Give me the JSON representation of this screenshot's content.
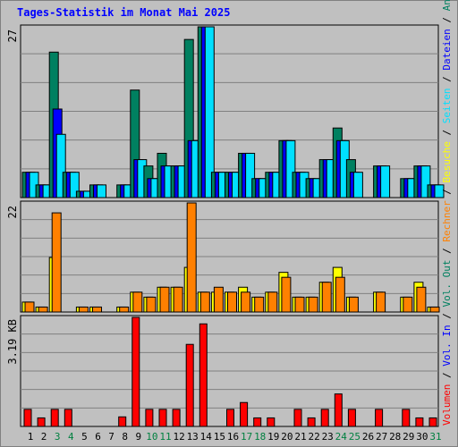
{
  "title": "Tages-Statistik im Monat Mai 2025",
  "chart_data": {
    "type": "bar",
    "categories": [
      "1",
      "2",
      "3",
      "4",
      "5",
      "6",
      "7",
      "8",
      "9",
      "10",
      "11",
      "12",
      "13",
      "14",
      "15",
      "16",
      "17",
      "18",
      "19",
      "20",
      "21",
      "22",
      "23",
      "24",
      "25",
      "26",
      "27",
      "28",
      "29",
      "30",
      "31"
    ],
    "weekend_days": [
      "3",
      "4",
      "10",
      "11",
      "17",
      "18",
      "24",
      "25",
      "31"
    ],
    "panels": [
      {
        "name": "hits-files-pages",
        "max_label": "27",
        "ymax": 27,
        "series": [
          {
            "name": "Anfragen",
            "color": "#008060",
            "values": [
              4,
              2,
              23,
              4,
              1,
              2,
              0,
              2,
              17,
              5,
              7,
              5,
              25,
              27,
              4,
              4,
              7,
              3,
              4,
              9,
              4,
              3,
              6,
              11,
              6,
              0,
              5,
              0,
              3,
              5,
              2
            ]
          },
          {
            "name": "Dateien",
            "color": "#0000ff",
            "values": [
              4,
              2,
              14,
              4,
              1,
              2,
              0,
              2,
              6,
              3,
              5,
              5,
              9,
              27,
              4,
              4,
              7,
              3,
              4,
              9,
              4,
              3,
              6,
              9,
              4,
              0,
              5,
              0,
              3,
              5,
              2
            ]
          },
          {
            "name": "Seiten",
            "color": "#00e0ff",
            "values": [
              4,
              2,
              10,
              4,
              1,
              2,
              0,
              2,
              6,
              3,
              5,
              5,
              9,
              27,
              4,
              4,
              7,
              3,
              4,
              9,
              4,
              3,
              6,
              9,
              4,
              0,
              5,
              0,
              3,
              5,
              2
            ]
          }
        ]
      },
      {
        "name": "visits-sites",
        "max_label": "22",
        "ymax": 22,
        "series": [
          {
            "name": "Besuche",
            "color": "#ffff00",
            "values": [
              2,
              1,
              11,
              0,
              1,
              1,
              0,
              1,
              4,
              3,
              5,
              5,
              9,
              4,
              4,
              4,
              5,
              3,
              4,
              8,
              3,
              3,
              6,
              9,
              3,
              0,
              4,
              0,
              3,
              6,
              1
            ]
          },
          {
            "name": "Rechner",
            "color": "#ff8000",
            "values": [
              2,
              1,
              20,
              0,
              1,
              1,
              0,
              1,
              4,
              3,
              5,
              5,
              22,
              4,
              5,
              4,
              4,
              3,
              4,
              7,
              3,
              3,
              6,
              7,
              3,
              0,
              4,
              0,
              3,
              5,
              1
            ]
          }
        ]
      },
      {
        "name": "volume",
        "max_label": "3.19 KB",
        "ymax": 3.19,
        "series": [
          {
            "name": "Volumen",
            "color": "#ff0000",
            "values": [
              0.5,
              0.25,
              0.5,
              0.5,
              0,
              0,
              0,
              0.28,
              3.19,
              0.5,
              0.5,
              0.5,
              2.4,
              3.0,
              0,
              0.5,
              0.7,
              0.25,
              0.25,
              0,
              0.5,
              0.25,
              0.5,
              0.95,
              0.5,
              0,
              0.5,
              0,
              0.5,
              0.25,
              0.25
            ]
          }
        ]
      }
    ],
    "legend": {
      "placement": "right-vertical",
      "separator": "/",
      "items": [
        {
          "label": "Volumen",
          "color": "#ff0000"
        },
        {
          "label": "Vol. In",
          "color": "#0000ff"
        },
        {
          "label": "Vol. Out",
          "color": "#008060"
        },
        {
          "label": "Rechner",
          "color": "#ff8000"
        },
        {
          "label": "Besuche",
          "color": "#ffff00"
        },
        {
          "label": "Seiten",
          "color": "#00e0ff"
        },
        {
          "label": "Dateien",
          "color": "#0000ff"
        },
        {
          "label": "Anfragen",
          "color": "#008060"
        }
      ]
    },
    "grid": true,
    "colors": {
      "background": "#c0c0c0",
      "grid": "#808080",
      "weekday_label": "#000000",
      "weekend_label": "#008040",
      "separator": "#000000"
    }
  }
}
